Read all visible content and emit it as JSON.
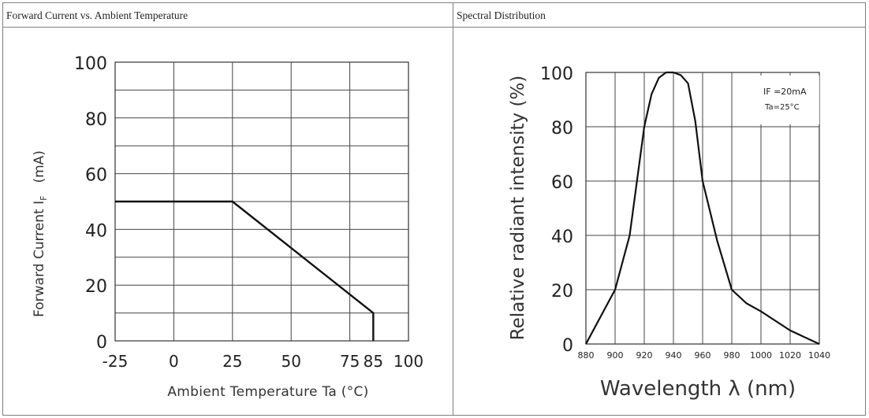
{
  "headers": {
    "left_title": "Forward Current vs. Ambient Temperature",
    "right_title": "Spectral Distribution"
  },
  "chart_data": [
    {
      "type": "line",
      "title": "Forward Current vs. Ambient Temperature",
      "xlabel": "Ambient Temperature Ta (°C)",
      "ylabel": "Forward Current IF (mA)",
      "ylabel_main": "Forward Current I",
      "ylabel_sub": "F",
      "ylabel_unit": "(mA)",
      "xlim": [
        -25,
        100
      ],
      "ylim": [
        0,
        100
      ],
      "xticks": [
        "-25",
        "0",
        "25",
        "50",
        "75",
        "85",
        "100"
      ],
      "yticks": [
        "0",
        "20",
        "40",
        "60",
        "80",
        "100"
      ],
      "grid": true,
      "series": [
        {
          "x": [
            -25,
            25,
            85,
            85
          ],
          "y": [
            50,
            50,
            10,
            0
          ]
        }
      ]
    },
    {
      "type": "line",
      "title": "Spectral Distribution",
      "xlabel": "Wavelength λ (nm)",
      "ylabel": "Relative radiant intensity (%)",
      "xlim": [
        880,
        1040
      ],
      "ylim": [
        0,
        100
      ],
      "xticks": [
        "880",
        "900",
        "920",
        "940",
        "960",
        "980",
        "1000",
        "1020",
        "1040"
      ],
      "yticks": [
        "0",
        "20",
        "40",
        "60",
        "80",
        "100"
      ],
      "grid": true,
      "annotation": [
        "IF =20mA",
        "Ta=25°C"
      ],
      "series": [
        {
          "x": [
            880,
            900,
            910,
            920,
            925,
            930,
            935,
            940,
            945,
            950,
            955,
            960,
            970,
            980,
            990,
            1000,
            1020,
            1040
          ],
          "y": [
            0,
            20,
            40,
            80,
            92,
            98,
            100,
            100,
            99,
            96,
            82,
            60,
            38,
            20,
            15,
            12,
            5,
            0
          ]
        }
      ]
    }
  ]
}
